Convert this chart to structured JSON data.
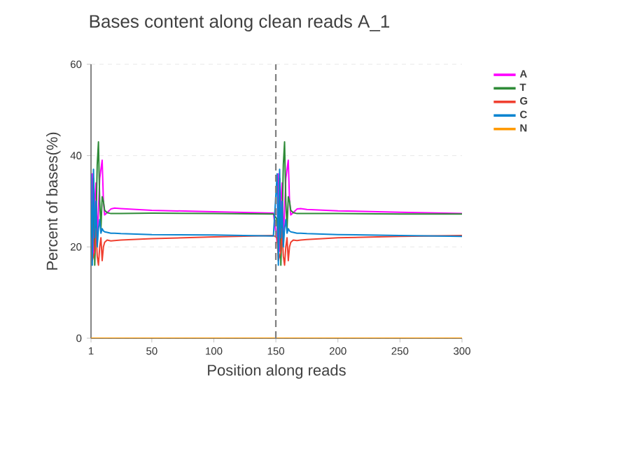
{
  "chart_data": {
    "type": "line",
    "title": "Bases content along clean reads A_1",
    "xlabel": "Position along reads",
    "ylabel": "Percent of bases(%)",
    "x": [
      1,
      2,
      3,
      4,
      5,
      6,
      7,
      8,
      9,
      10,
      11,
      12,
      14,
      17,
      20,
      25,
      50,
      100,
      148,
      151,
      152,
      153,
      154,
      155,
      156,
      157,
      158,
      159,
      160,
      161,
      162,
      164,
      167,
      170,
      175,
      200,
      250,
      300
    ],
    "series": [
      {
        "name": "A",
        "color": "#ff00ff",
        "values": [
          20,
          36,
          18,
          30,
          34,
          22,
          28,
          35,
          37,
          39,
          30,
          27,
          27.5,
          28.3,
          28.5,
          28.4,
          28,
          27.7,
          27.4,
          21,
          36,
          19,
          30,
          34,
          22,
          28,
          35,
          37,
          39,
          30,
          27,
          27.5,
          28.3,
          28.4,
          28.2,
          27.9,
          27.6,
          27.3
        ]
      },
      {
        "name": "T",
        "color": "#2e8b37",
        "values": [
          26,
          20,
          35,
          16,
          25,
          38,
          43,
          30,
          24,
          31,
          30,
          28,
          27.5,
          27.3,
          27.3,
          27.3,
          27.4,
          27.3,
          27.2,
          26,
          20,
          35,
          16,
          25,
          38,
          43,
          30,
          24,
          31,
          30,
          28,
          27.5,
          27.3,
          27.3,
          27.3,
          27.3,
          27.2,
          27.2
        ]
      },
      {
        "name": "G",
        "color": "#f04030",
        "values": [
          22,
          17,
          null,
          19,
          24,
          18,
          16,
          20,
          22,
          17,
          20,
          21,
          21.5,
          21.3,
          21.4,
          21.5,
          21.8,
          22.2,
          22.5,
          22,
          17,
          null,
          19,
          24,
          18,
          16,
          20,
          22,
          17,
          20,
          21,
          21.5,
          21.4,
          21.5,
          21.6,
          22,
          22.3,
          22.5
        ]
      },
      {
        "name": "C",
        "color": "#0a84d0",
        "values": [
          36,
          16,
          37,
          22,
          30,
          20,
          24,
          26,
          23,
          24,
          23.5,
          23.3,
          23.2,
          23,
          23,
          22.9,
          22.7,
          22.6,
          22.4,
          36,
          16,
          37,
          22,
          30,
          20,
          24,
          26,
          23,
          24,
          23.5,
          23.3,
          23.2,
          23,
          23,
          22.9,
          22.7,
          22.5,
          22.3
        ]
      },
      {
        "name": "N",
        "color": "#ff9900",
        "values": [
          0,
          0,
          0,
          0,
          0,
          0,
          0,
          0,
          0,
          0,
          0,
          0,
          0,
          0,
          0,
          0,
          0,
          0,
          0,
          0,
          0,
          0,
          0,
          0,
          0,
          0,
          0,
          0,
          0,
          0,
          0,
          0,
          0,
          0,
          0,
          0,
          0,
          0
        ]
      }
    ],
    "xlim": [
      1,
      300
    ],
    "ylim": [
      0,
      60
    ],
    "xticks": [
      1,
      50,
      100,
      150,
      200,
      250,
      300
    ],
    "yticks": [
      0,
      20,
      40,
      60
    ],
    "ref_lines": [
      {
        "axis": "x",
        "value": 150,
        "color": "#808080",
        "line_style": "dashed"
      }
    ],
    "grid": "y",
    "legend": "top right",
    "marker": "none",
    "line_style": "solid"
  }
}
